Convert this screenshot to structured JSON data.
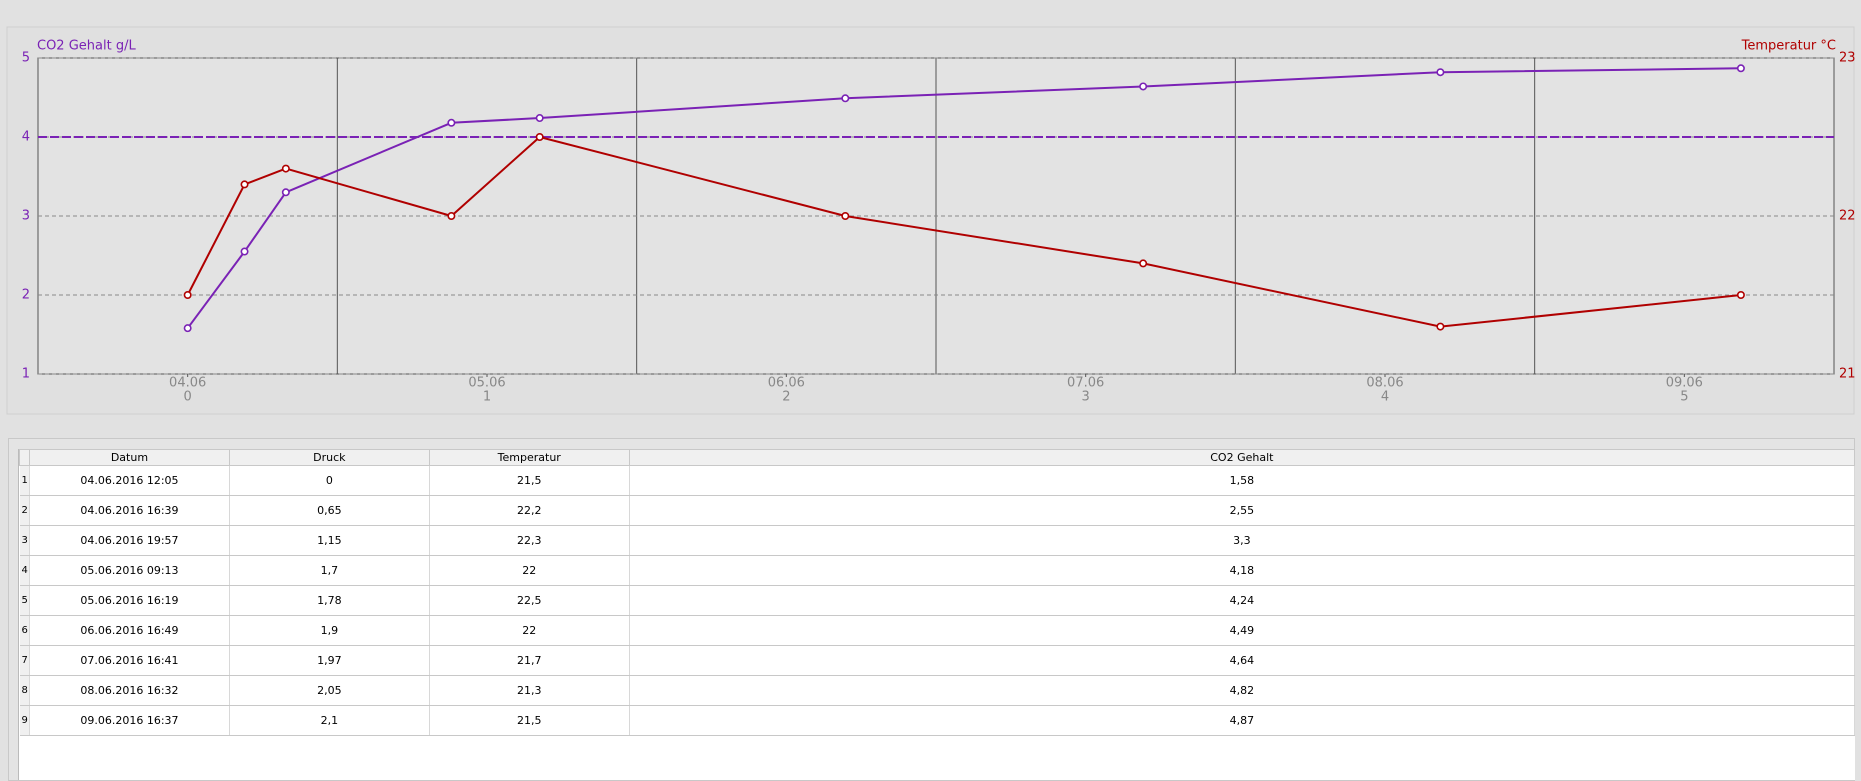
{
  "chart_data": {
    "type": "line",
    "ylabel": "CO2 Gehalt g/L",
    "y2label": "Temperatur °C",
    "x": [
      0,
      0.19,
      0.328,
      0.881,
      1.176,
      2.197,
      3.192,
      4.185,
      5.189
    ],
    "xlim": [
      -0.5,
      5.5
    ],
    "xticks": [
      0,
      1,
      2,
      3,
      4,
      5
    ],
    "x_date_labels": [
      "04.06",
      "05.06",
      "06.06",
      "07.06",
      "08.06",
      "09.06"
    ],
    "x_gridlines": [
      0.5,
      1.5,
      2.5,
      3.5,
      4.5
    ],
    "ylim": [
      1,
      5
    ],
    "yticks": [
      1,
      2,
      3,
      4,
      5
    ],
    "y2lim": [
      21,
      23
    ],
    "y2ticks": [
      21,
      22,
      23
    ],
    "threshold": 4,
    "threshold_color": "#7a22b5",
    "grid": true,
    "series": [
      {
        "name": "CO2 Gehalt",
        "color": "#7a22b5",
        "values": [
          1.58,
          2.55,
          3.3,
          4.18,
          4.24,
          4.49,
          4.64,
          4.82,
          4.87
        ]
      },
      {
        "name": "Temperatur",
        "color": "#b00000",
        "axis": "y2",
        "values": [
          21.5,
          22.2,
          22.3,
          22,
          22.5,
          22,
          21.7,
          21.3,
          21.5
        ]
      }
    ]
  },
  "table": {
    "columns": [
      "Datum",
      "Druck",
      "Temperatur",
      "CO2 Gehalt"
    ],
    "row_numbers": [
      1,
      2,
      3,
      4,
      5,
      6,
      7,
      8,
      9
    ],
    "rows": [
      [
        "04.06.2016 12:05",
        "0",
        "21,5",
        "1,58"
      ],
      [
        "04.06.2016 16:39",
        "0,65",
        "22,2",
        "2,55"
      ],
      [
        "04.06.2016 19:57",
        "1,15",
        "22,3",
        "3,3"
      ],
      [
        "05.06.2016 09:13",
        "1,7",
        "22",
        "4,18"
      ],
      [
        "05.06.2016 16:19",
        "1,78",
        "22,5",
        "4,24"
      ],
      [
        "06.06.2016 16:49",
        "1,9",
        "22",
        "4,49"
      ],
      [
        "07.06.2016 16:41",
        "1,97",
        "21,7",
        "4,64"
      ],
      [
        "08.06.2016 16:32",
        "2,05",
        "21,3",
        "4,82"
      ],
      [
        "09.06.2016 16:37",
        "2,1",
        "21,5",
        "4,87"
      ]
    ]
  }
}
